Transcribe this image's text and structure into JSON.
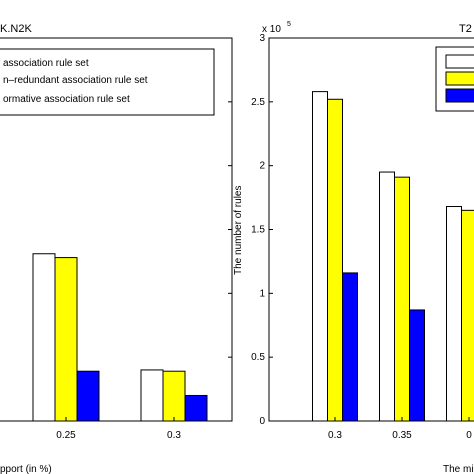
{
  "legend_entries": [
    "association rule set",
    "n–redundant association rule set",
    "ormative association rule set"
  ],
  "colors": {
    "series": [
      "#ffffff",
      "#ffff00",
      "#0000ff"
    ],
    "axis": "#000000",
    "background": "#ffffff"
  },
  "chart_data": [
    {
      "type": "bar",
      "title": "K.N2K",
      "xlabel": "pport (in %)",
      "ylabel": "",
      "categories": [
        "0.25",
        "0.3"
      ],
      "series": [
        {
          "values": [
            1.31,
            0.4
          ]
        },
        {
          "values": [
            1.28,
            0.39
          ]
        },
        {
          "values": [
            0.39,
            0.2
          ]
        }
      ],
      "ylim": [
        0,
        3
      ],
      "y_ticks": [],
      "grid": false,
      "legend": "top-left"
    },
    {
      "type": "bar",
      "title": "T2",
      "xlabel": "The mi",
      "ylabel": "The number of rules",
      "y_multiplier": "x 10",
      "y_exponent": "5",
      "categories": [
        "0.3",
        "0.35",
        "0"
      ],
      "series": [
        {
          "values": [
            2.58,
            1.95,
            1.68
          ]
        },
        {
          "values": [
            2.52,
            1.91,
            1.65
          ]
        },
        {
          "values": [
            1.16,
            0.87,
            0.0
          ]
        }
      ],
      "ylim": [
        0,
        3
      ],
      "y_ticks": [
        "0",
        "0.5",
        "1",
        "1.5",
        "2",
        "2.5",
        "3"
      ],
      "grid": false,
      "legend": "top-right"
    }
  ]
}
